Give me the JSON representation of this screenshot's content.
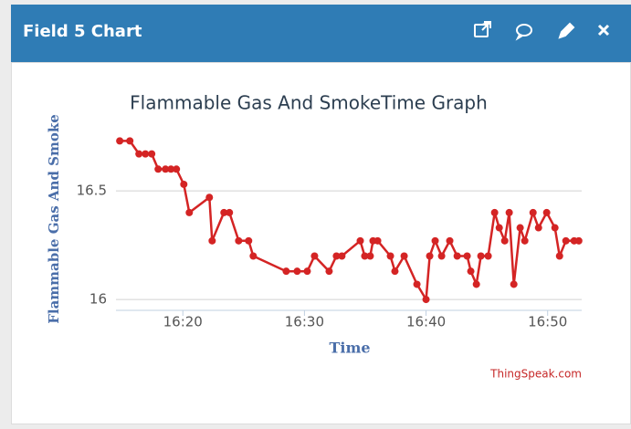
{
  "header": {
    "title": "Field 5 Chart"
  },
  "chart_data": {
    "type": "line",
    "title": "Flammable Gas And SmokeTime Graph",
    "x_label": "Time",
    "y_label": "Flammable Gas And Smoke",
    "credit": "ThingSpeak.com",
    "color": "#d42424",
    "x": [
      974.81,
      975.64,
      976.39,
      976.92,
      977.44,
      977.97,
      978.57,
      979.02,
      979.47,
      980.08,
      980.53,
      982.18,
      982.41,
      983.38,
      983.83,
      984.59,
      985.41,
      985.79,
      988.5,
      989.4,
      990.23,
      990.83,
      992.03,
      992.63,
      993.08,
      994.59,
      994.96,
      995.41,
      995.64,
      996.02,
      997.07,
      997.44,
      998.2,
      999.25,
      1000.0,
      1000.3,
      1000.75,
      1001.28,
      1001.95,
      1002.56,
      1003.38,
      1003.68,
      1004.14,
      1004.51,
      1005.11,
      1005.64,
      1006.02,
      1006.47,
      1006.84,
      1007.22,
      1007.74,
      1008.12,
      1008.8,
      1009.25,
      1009.92,
      1010.6,
      1010.98,
      1011.5,
      1012.18,
      1012.56
    ],
    "values": [
      16.73,
      16.73,
      16.67,
      16.67,
      16.67,
      16.6,
      16.6,
      16.6,
      16.6,
      16.53,
      16.4,
      16.47,
      16.27,
      16.4,
      16.4,
      16.27,
      16.27,
      16.2,
      16.13,
      16.13,
      16.13,
      16.2,
      16.13,
      16.2,
      16.2,
      16.27,
      16.2,
      16.2,
      16.27,
      16.27,
      16.2,
      16.13,
      16.2,
      16.07,
      16.0,
      16.2,
      16.27,
      16.2,
      16.27,
      16.2,
      16.2,
      16.13,
      16.07,
      16.2,
      16.2,
      16.4,
      16.33,
      16.27,
      16.4,
      16.07,
      16.33,
      16.27,
      16.4,
      16.33,
      16.4,
      16.33,
      16.2,
      16.27,
      16.27,
      16.27
    ],
    "xlim": [
      974.5,
      1012.8
    ],
    "xticks": [
      {
        "value": 980,
        "label": "16:20"
      },
      {
        "value": 990,
        "label": "16:30"
      },
      {
        "value": 1000,
        "label": "16:40"
      },
      {
        "value": 1010,
        "label": "16:50"
      }
    ],
    "ylim": [
      15.95,
      16.8
    ],
    "yticks": [
      16,
      16.5
    ],
    "grid": true
  }
}
